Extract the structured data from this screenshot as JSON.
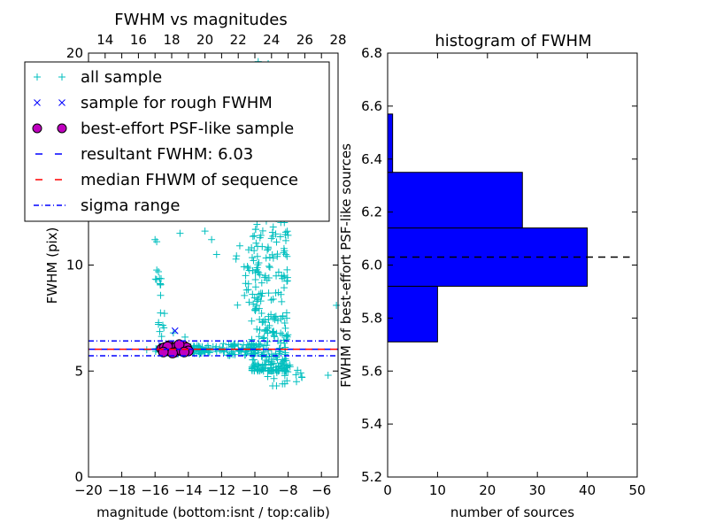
{
  "chart_data": [
    {
      "type": "scatter",
      "title": "FWHM vs magnitudes",
      "xlabel": "magnitude (bottom:isnt / top:calib)",
      "ylabel": "FWHM (pix)",
      "xlim": [
        -20,
        -5
      ],
      "ylim": [
        0,
        20
      ],
      "top_xlim": [
        13.0,
        28.0
      ],
      "xticks": [
        "−20",
        "−18",
        "−16",
        "−14",
        "−12",
        "−10",
        "−8",
        "−6"
      ],
      "xtick_values": [
        -20,
        -18,
        -16,
        -14,
        -12,
        -10,
        -8,
        -6
      ],
      "top_xticks": [
        "14",
        "16",
        "18",
        "20",
        "22",
        "24",
        "26",
        "28"
      ],
      "top_xtick_values": [
        14,
        16,
        18,
        20,
        22,
        24,
        26,
        28
      ],
      "yticks": [
        "0",
        "5",
        "10"
      ],
      "ytick_values": [
        0,
        5,
        10
      ],
      "grid": false,
      "legend_position": "upper-left",
      "colors": {
        "all_sample": "#00bfbf",
        "rough_sample": "#0000ff",
        "best_effort": "#bf00bf",
        "resultant_line": "#0000ff",
        "median_line": "#ff0000",
        "sigma_line": "#0000ff"
      },
      "series": [
        {
          "name": "all sample",
          "marker": "+",
          "clusters": [
            {
              "x_range": [
                -16.0,
                -12.0
              ],
              "y_range": [
                5.8,
                6.2
              ],
              "count": 90
            },
            {
              "x_range": [
                -12.0,
                -9.5
              ],
              "y_range": [
                5.7,
                6.3
              ],
              "count": 60
            },
            {
              "x_range": [
                -10.2,
                -8.0
              ],
              "y_range": [
                5.0,
                15.5
              ],
              "count": 300
            },
            {
              "x_range": [
                -11.2,
                -9.8
              ],
              "y_range": [
                8.0,
                11.0
              ],
              "count": 25
            },
            {
              "x_range": [
                -16.0,
                -15.5
              ],
              "y_range": [
                8.5,
                9.8
              ],
              "count": 10
            },
            {
              "x_range": [
                -15.8,
                -15.4
              ],
              "y_range": [
                6.2,
                8.0
              ],
              "count": 8
            },
            {
              "x_range": [
                -9.5,
                -7.0
              ],
              "y_range": [
                4.3,
                5.5
              ],
              "count": 20
            }
          ],
          "points": [
            {
              "x": -9.8,
              "y": 19.6
            },
            {
              "x": -9.2,
              "y": 19.5
            },
            {
              "x": -8.6,
              "y": 18.5
            },
            {
              "x": -10.0,
              "y": 14.3
            },
            {
              "x": -9.0,
              "y": 13.5
            },
            {
              "x": -16.0,
              "y": 11.2
            },
            {
              "x": -15.9,
              "y": 11.1
            },
            {
              "x": -14.5,
              "y": 11.5
            },
            {
              "x": -13.0,
              "y": 11.6
            },
            {
              "x": -12.6,
              "y": 11.2
            },
            {
              "x": -12.3,
              "y": 10.5
            },
            {
              "x": -16.5,
              "y": 6.0
            },
            {
              "x": -14.9,
              "y": 6.8
            },
            {
              "x": -14.2,
              "y": 6.6
            },
            {
              "x": -5.6,
              "y": 4.8
            },
            {
              "x": -5.1,
              "y": 8.1
            },
            {
              "x": -7.5,
              "y": 4.5
            },
            {
              "x": -8.2,
              "y": 4.4
            },
            {
              "x": -8.7,
              "y": 4.3
            }
          ]
        },
        {
          "name": "sample for rough FWHM",
          "marker": "x",
          "points": [
            {
              "x": -15.3,
              "y": 6.0
            },
            {
              "x": -15.0,
              "y": 6.1
            },
            {
              "x": -14.8,
              "y": 6.9
            },
            {
              "x": -14.7,
              "y": 6.0
            },
            {
              "x": -14.5,
              "y": 6.1
            },
            {
              "x": -14.2,
              "y": 5.9
            },
            {
              "x": -14.0,
              "y": 6.0
            },
            {
              "x": -15.6,
              "y": 6.2
            }
          ]
        },
        {
          "name": "best-effort PSF-like sample",
          "marker": "o",
          "points": [
            {
              "x": -15.6,
              "y": 6.05
            },
            {
              "x": -15.45,
              "y": 6.1
            },
            {
              "x": -15.3,
              "y": 5.95
            },
            {
              "x": -15.15,
              "y": 6.2
            },
            {
              "x": -15.0,
              "y": 6.0
            },
            {
              "x": -14.9,
              "y": 6.1
            },
            {
              "x": -14.8,
              "y": 5.9
            },
            {
              "x": -14.7,
              "y": 6.15
            },
            {
              "x": -14.6,
              "y": 6.0
            },
            {
              "x": -14.5,
              "y": 6.05
            },
            {
              "x": -14.4,
              "y": 5.95
            },
            {
              "x": -14.3,
              "y": 6.2
            },
            {
              "x": -14.2,
              "y": 6.0
            },
            {
              "x": -14.1,
              "y": 6.1
            },
            {
              "x": -14.0,
              "y": 5.95
            },
            {
              "x": -15.25,
              "y": 6.15
            },
            {
              "x": -14.95,
              "y": 5.85
            },
            {
              "x": -14.55,
              "y": 6.25
            },
            {
              "x": -14.25,
              "y": 5.9
            },
            {
              "x": -15.5,
              "y": 5.9
            }
          ]
        }
      ],
      "lines": [
        {
          "name": "resultant FWHM: 6.03",
          "y": 6.03,
          "style": "dashed"
        },
        {
          "name": "median FHWM of sequence",
          "y": 6.03,
          "style": "dashed"
        },
        {
          "name": "sigma range",
          "y": 5.72,
          "style": "dashdot"
        },
        {
          "name": "sigma range",
          "y": 6.42,
          "style": "dashdot"
        }
      ],
      "legend": [
        "all sample",
        "sample for rough FWHM",
        "best-effort PSF-like sample",
        "resultant FWHM: 6.03",
        "median FHWM of sequence",
        "sigma range"
      ]
    },
    {
      "type": "bar",
      "orientation": "horizontal",
      "title": "histogram of FWHM",
      "xlabel": "number of sources",
      "ylabel": "FWHM of best-effort PSF-like sources",
      "xlim": [
        0,
        50
      ],
      "ylim": [
        5.2,
        6.8
      ],
      "xticks": [
        "0",
        "10",
        "20",
        "30",
        "40",
        "50"
      ],
      "xtick_values": [
        0,
        10,
        20,
        30,
        40,
        50
      ],
      "yticks": [
        "5.2",
        "5.4",
        "5.6",
        "5.8",
        "6.0",
        "6.2",
        "6.4",
        "6.6",
        "6.8"
      ],
      "ytick_values": [
        5.2,
        5.4,
        5.6,
        5.8,
        6.0,
        6.2,
        6.4,
        6.6,
        6.8
      ],
      "grid": false,
      "bar_color": "#0000ff",
      "bins": [
        {
          "from": 5.71,
          "to": 5.92,
          "count": 10
        },
        {
          "from": 5.92,
          "to": 6.14,
          "count": 40
        },
        {
          "from": 6.14,
          "to": 6.35,
          "count": 27
        },
        {
          "from": 6.35,
          "to": 6.57,
          "count": 1
        }
      ],
      "reference_line": {
        "y": 6.03,
        "style": "dashed",
        "color": "#000000"
      }
    }
  ]
}
